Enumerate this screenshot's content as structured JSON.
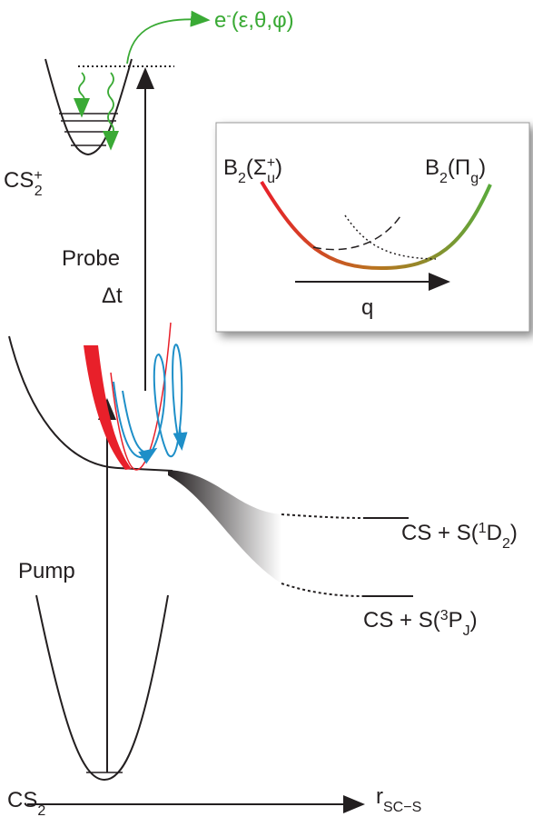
{
  "electron": {
    "base": "e",
    "sup": "-",
    "rest": "(ε,θ,φ)"
  },
  "cation": {
    "base": "CS",
    "sub": "2",
    "sup": "+"
  },
  "probe": "Probe",
  "delay": "Δt",
  "inset": {
    "left": {
      "base": "B",
      "sub": "2",
      "open": "(Σ",
      "sub2": "u",
      "sup2": "+",
      "close": ")"
    },
    "right": {
      "base": "B",
      "sub": "2",
      "open": "(Π",
      "sub2": "g",
      "close": ")"
    },
    "coordinate": "q"
  },
  "channels": [
    {
      "lead": "CS + S(",
      "sup": "1",
      "base": "D",
      "sub": "2",
      "close": ")"
    },
    {
      "lead": "CS + S(",
      "sup": "3",
      "base": "P",
      "sub": "J",
      "close": ")"
    }
  ],
  "pump": "Pump",
  "ground": {
    "base": "CS",
    "sub": "2"
  },
  "axis": {
    "base": "r",
    "sub": "SC−S"
  }
}
